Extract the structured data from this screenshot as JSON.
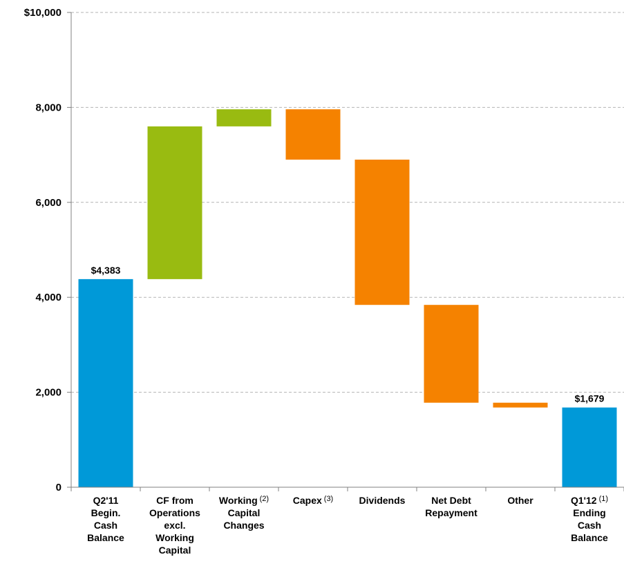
{
  "chart_data": {
    "type": "bar",
    "subtype": "waterfall",
    "title": "",
    "xlabel": "",
    "ylabel": "",
    "ylim": [
      0,
      10000
    ],
    "yticks": [
      "0",
      "2,000",
      "4,000",
      "6,000",
      "8,000",
      "$10,000"
    ],
    "ytick_values": [
      0,
      2000,
      4000,
      6000,
      8000,
      10000
    ],
    "grid": true,
    "colors": {
      "total": "#0099d8",
      "increase": "#99bb11",
      "decrease": "#f58200",
      "grid": "#b3b3b3",
      "axis": "#808080"
    },
    "categories": [
      {
        "lines": [
          "Q2'11",
          "Begin.",
          "Cash",
          "Balance"
        ],
        "sup": ""
      },
      {
        "lines": [
          "CF from",
          "Operations",
          "excl.",
          "Working",
          "Capital"
        ],
        "sup": ""
      },
      {
        "lines": [
          "Working",
          "Capital",
          "Changes"
        ],
        "sup": "(2)"
      },
      {
        "lines": [
          "Capex"
        ],
        "sup": "(3)"
      },
      {
        "lines": [
          "Dividends"
        ],
        "sup": ""
      },
      {
        "lines": [
          "Net Debt",
          "Repayment"
        ],
        "sup": ""
      },
      {
        "lines": [
          "Other"
        ],
        "sup": ""
      },
      {
        "lines": [
          "Q1'12",
          "Ending",
          "Cash",
          "Balance"
        ],
        "sup": "(1)"
      }
    ],
    "bars": [
      {
        "kind": "total",
        "start": 0,
        "end": 4383,
        "label": "$4,383"
      },
      {
        "kind": "increase",
        "start": 4383,
        "end": 7600,
        "label": ""
      },
      {
        "kind": "increase",
        "start": 7600,
        "end": 7960,
        "label": ""
      },
      {
        "kind": "decrease",
        "start": 7960,
        "end": 6900,
        "label": ""
      },
      {
        "kind": "decrease",
        "start": 6900,
        "end": 3840,
        "label": ""
      },
      {
        "kind": "decrease",
        "start": 3840,
        "end": 1780,
        "label": ""
      },
      {
        "kind": "decrease",
        "start": 1780,
        "end": 1679,
        "label": ""
      },
      {
        "kind": "total",
        "start": 0,
        "end": 1679,
        "label": "$1,679"
      }
    ]
  }
}
